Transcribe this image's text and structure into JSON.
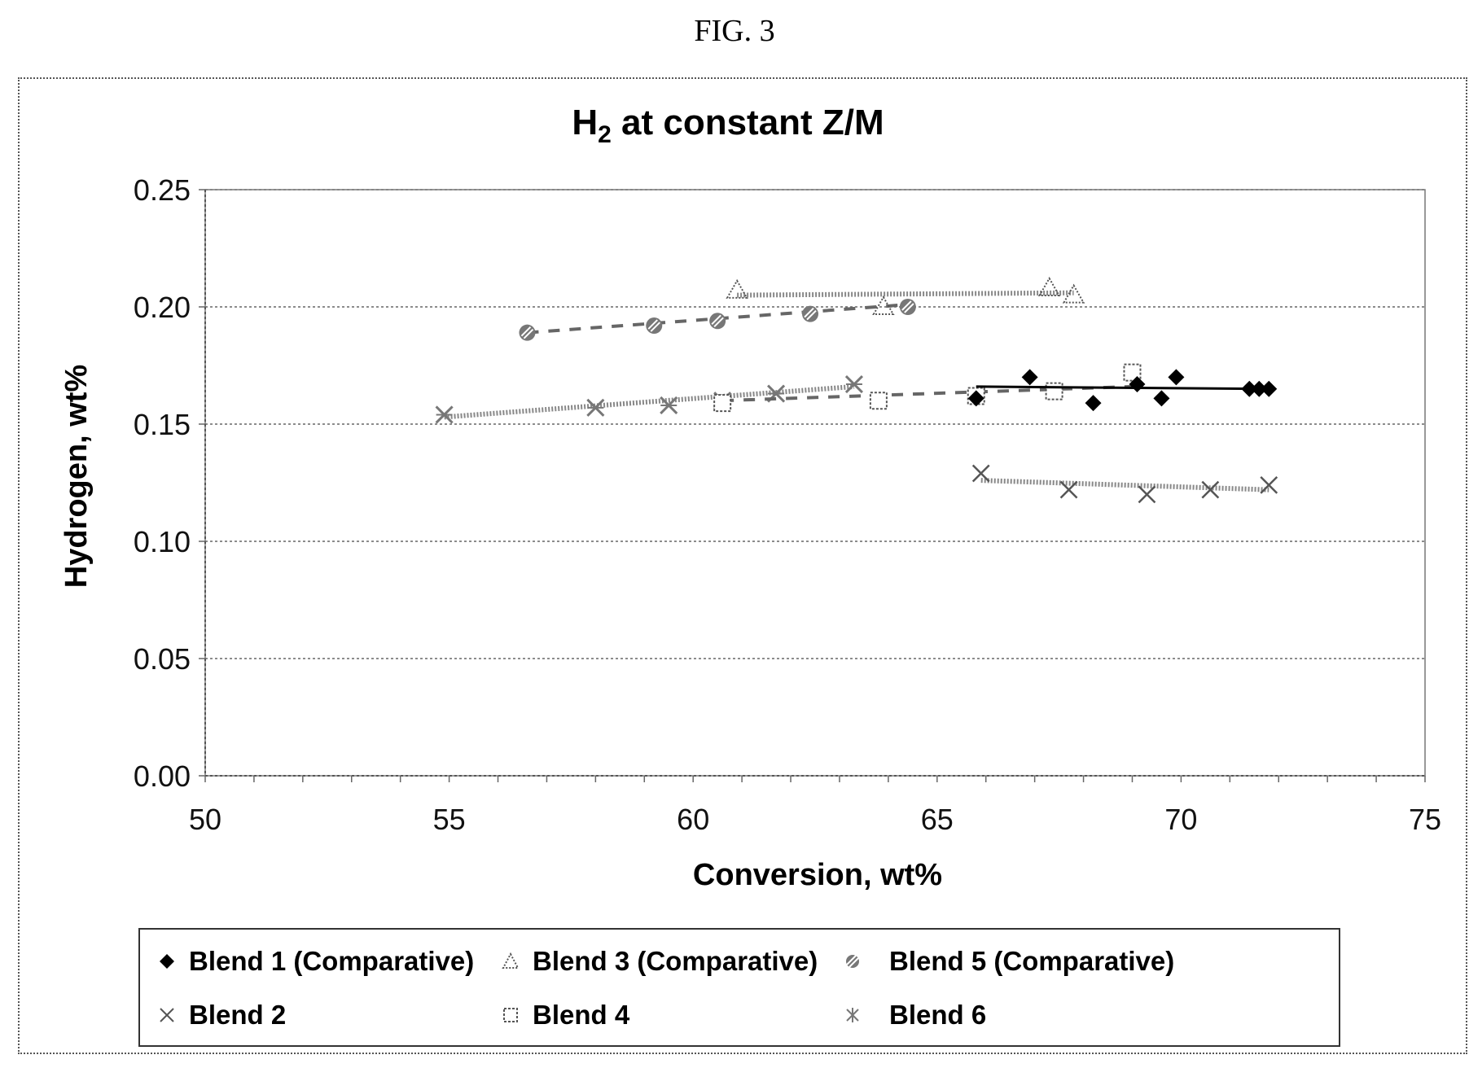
{
  "figure_label": "FIG. 3",
  "chart_data": {
    "type": "scatter",
    "title": "H",
    "title_sub": "2",
    "title_rest": " at constant Z/M",
    "xlabel": "Conversion, wt%",
    "ylabel": "Hydrogen, wt%",
    "xlim": [
      50,
      75
    ],
    "ylim": [
      0,
      0.25
    ],
    "xticks": [
      "50",
      "55",
      "60",
      "65",
      "70",
      "75"
    ],
    "yticks": [
      "0.00",
      "0.05",
      "0.10",
      "0.15",
      "0.20",
      "0.25"
    ],
    "grid": "horizontal dotted",
    "legend_position": "bottom",
    "series": [
      {
        "name": "Blend 1 (Comparative)",
        "marker": "diamond",
        "color": "#000000",
        "line": "solid",
        "points": [
          [
            65.8,
            0.161
          ],
          [
            66.9,
            0.17
          ],
          [
            68.2,
            0.159
          ],
          [
            69.1,
            0.167
          ],
          [
            69.6,
            0.161
          ],
          [
            69.9,
            0.17
          ],
          [
            71.4,
            0.165
          ],
          [
            71.6,
            0.165
          ],
          [
            71.8,
            0.165
          ]
        ],
        "trend": [
          [
            65.8,
            0.166
          ],
          [
            71.8,
            0.165
          ]
        ]
      },
      {
        "name": "Blend 3 (Comparative)",
        "marker": "triangle",
        "color": "#555555",
        "line": "hatched",
        "points": [
          [
            60.9,
            0.207
          ],
          [
            63.9,
            0.2
          ],
          [
            67.3,
            0.208
          ],
          [
            67.8,
            0.205
          ]
        ],
        "trend": [
          [
            60.9,
            0.205
          ],
          [
            67.8,
            0.206
          ]
        ]
      },
      {
        "name": "Blend 5 (Comparative)",
        "marker": "hatched-circle",
        "color": "#555555",
        "line": "dashed",
        "points": [
          [
            56.6,
            0.189
          ],
          [
            59.2,
            0.192
          ],
          [
            60.5,
            0.194
          ],
          [
            62.4,
            0.197
          ],
          [
            64.4,
            0.2
          ]
        ],
        "trend": [
          [
            56.6,
            0.189
          ],
          [
            64.4,
            0.201
          ]
        ]
      },
      {
        "name": "Blend 2",
        "marker": "x",
        "color": "#555555",
        "line": "hatched",
        "points": [
          [
            65.9,
            0.129
          ],
          [
            67.7,
            0.122
          ],
          [
            69.3,
            0.12
          ],
          [
            70.6,
            0.122
          ],
          [
            71.8,
            0.124
          ]
        ],
        "trend": [
          [
            65.9,
            0.126
          ],
          [
            71.8,
            0.122
          ]
        ]
      },
      {
        "name": "Blend 4",
        "marker": "square",
        "color": "#555555",
        "line": "dashed",
        "points": [
          [
            60.6,
            0.159
          ],
          [
            63.8,
            0.16
          ],
          [
            65.8,
            0.162
          ],
          [
            67.4,
            0.164
          ],
          [
            69.0,
            0.172
          ]
        ],
        "trend": [
          [
            60.6,
            0.16
          ],
          [
            69.0,
            0.166
          ]
        ]
      },
      {
        "name": "Blend 6",
        "marker": "asterisk",
        "color": "#555555",
        "line": "hatched",
        "points": [
          [
            54.9,
            0.154
          ],
          [
            58.0,
            0.157
          ],
          [
            59.5,
            0.158
          ],
          [
            60.6,
            0.16
          ],
          [
            61.7,
            0.163
          ],
          [
            63.3,
            0.167
          ]
        ],
        "trend": [
          [
            54.9,
            0.153
          ],
          [
            63.3,
            0.166
          ]
        ]
      }
    ]
  }
}
